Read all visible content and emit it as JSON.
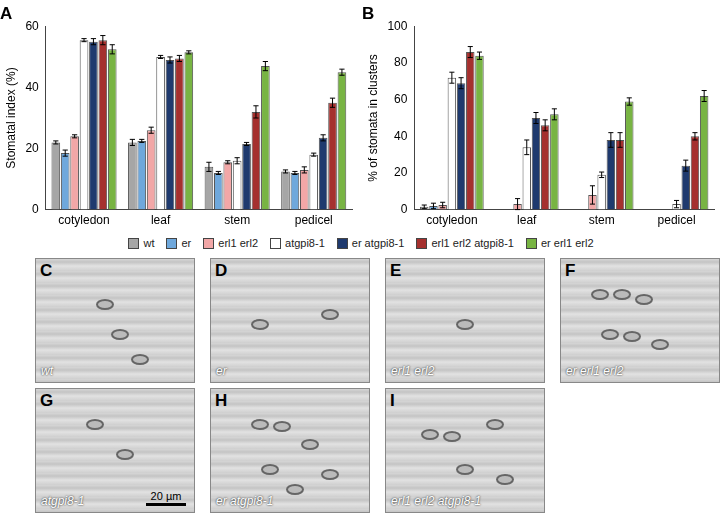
{
  "chart_data": [
    {
      "type": "bar",
      "title": "A",
      "y_label": "Stomatal index (%)",
      "categories": [
        "cotyledon",
        "leaf",
        "stem",
        "pedicel"
      ],
      "ylim": [
        0,
        60
      ],
      "yticks": [
        0,
        20,
        40,
        60
      ],
      "grid": false,
      "legend": "bottom",
      "series": [
        {
          "name": "wt",
          "color": "#a6a6a6",
          "values": [
            22,
            22,
            14,
            12.5
          ],
          "errors": [
            0.5,
            1,
            1.5,
            0.5
          ]
        },
        {
          "name": "er",
          "color": "#6fa8dc",
          "values": [
            18.5,
            22.5,
            12,
            12
          ],
          "errors": [
            1,
            0.5,
            0.5,
            0.5
          ]
        },
        {
          "name": "erl1 erl2",
          "color": "#f2a7a7",
          "values": [
            24,
            26,
            15.5,
            13
          ],
          "errors": [
            0.5,
            1,
            0.5,
            1
          ]
        },
        {
          "name": "atgpi8-1",
          "color": "#ffffff",
          "values": [
            55.5,
            50,
            16,
            18
          ],
          "errors": [
            0.5,
            0.5,
            1,
            0.5
          ]
        },
        {
          "name": "er atgpi8-1",
          "color": "#1f3a6e",
          "values": [
            55,
            49,
            21.5,
            23.5
          ],
          "errors": [
            1,
            1,
            0.5,
            1
          ]
        },
        {
          "name": "erl1 erl2 atgpi8-1",
          "color": "#a5302e",
          "values": [
            55.5,
            49.5,
            32,
            35
          ],
          "errors": [
            1.5,
            1,
            2,
            1.5
          ]
        },
        {
          "name": "er erl1 erl2",
          "color": "#78b443",
          "values": [
            52.5,
            51.5,
            47,
            45
          ],
          "errors": [
            1.5,
            0.5,
            1.5,
            1
          ]
        }
      ]
    },
    {
      "type": "bar",
      "title": "B",
      "y_label": "% of stomata in clusters",
      "categories": [
        "cotyledon",
        "leaf",
        "stem",
        "pedicel"
      ],
      "ylim": [
        0,
        100
      ],
      "yticks": [
        0,
        20,
        40,
        60,
        80,
        100
      ],
      "grid": false,
      "series": [
        {
          "name": "wt",
          "color": "#a6a6a6",
          "values": [
            1.5,
            0,
            0,
            0
          ],
          "errors": [
            1,
            0,
            0,
            0
          ]
        },
        {
          "name": "er",
          "color": "#6fa8dc",
          "values": [
            2,
            0,
            0,
            0
          ],
          "errors": [
            1.5,
            0,
            0,
            0
          ]
        },
        {
          "name": "erl1 erl2",
          "color": "#f2a7a7",
          "values": [
            2.5,
            3,
            8,
            0
          ],
          "errors": [
            1.5,
            3,
            5,
            0
          ]
        },
        {
          "name": "atgpi8-1",
          "color": "#ffffff",
          "values": [
            72,
            34,
            19,
            3
          ],
          "errors": [
            3,
            4,
            1.5,
            2
          ]
        },
        {
          "name": "er atgpi8-1",
          "color": "#1f3a6e",
          "values": [
            69,
            50,
            38,
            24
          ],
          "errors": [
            3,
            3,
            4,
            3
          ]
        },
        {
          "name": "erl1 erl2 atgpi8-1",
          "color": "#a5302e",
          "values": [
            86,
            46,
            38,
            40
          ],
          "errors": [
            3,
            3,
            4,
            2
          ]
        },
        {
          "name": "er erl1 erl2",
          "color": "#78b443",
          "values": [
            84,
            52,
            59,
            62
          ],
          "errors": [
            2,
            3,
            2,
            3
          ]
        }
      ]
    }
  ],
  "micrographs": [
    {
      "label": "C",
      "caption": "wt"
    },
    {
      "label": "D",
      "caption": "er"
    },
    {
      "label": "E",
      "caption": "erl1 erl2"
    },
    {
      "label": "F",
      "caption": "er erl1 erl2"
    },
    {
      "label": "G",
      "caption": "atgpi8-1",
      "scale_bar": "20 µm"
    },
    {
      "label": "H",
      "caption": "er atgpi8-1"
    },
    {
      "label": "I",
      "caption": "erl1 erl2 atgpi8-1"
    }
  ]
}
